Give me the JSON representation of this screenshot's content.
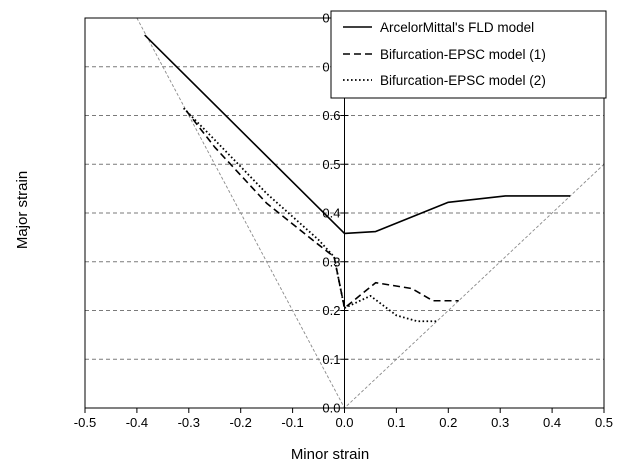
{
  "chart_data": {
    "type": "line",
    "title": "",
    "xlabel": "Minor strain",
    "ylabel": "Major strain",
    "xlim": [
      -0.5,
      0.5
    ],
    "ylim": [
      0.0,
      0.8
    ],
    "x_ticks": [
      "-0.5",
      "-0.4",
      "-0.3",
      "-0.2",
      "-0.1",
      "0.0",
      "0.1",
      "0.2",
      "0.3",
      "0.4",
      "0.5"
    ],
    "y_ticks": [
      "0.0",
      "0.1",
      "0.2",
      "0.3",
      "0.4",
      "0.5",
      "0.6",
      "0.7",
      "0.8"
    ],
    "grid": "horizontal dashed",
    "legend_position": "top-right",
    "series": [
      {
        "name": "ArcelorMittal's FLD model",
        "style": "solid",
        "points": [
          [
            -0.385,
            0.765
          ],
          [
            0.0,
            0.358
          ],
          [
            0.06,
            0.362
          ],
          [
            0.2,
            0.422
          ],
          [
            0.31,
            0.435
          ],
          [
            0.435,
            0.435
          ]
        ]
      },
      {
        "name": "Bifurcation-EPSC model (1)",
        "style": "dashed",
        "points": [
          [
            -0.305,
            0.61
          ],
          [
            -0.25,
            0.535
          ],
          [
            -0.15,
            0.42
          ],
          [
            -0.05,
            0.335
          ],
          [
            -0.02,
            0.31
          ],
          [
            0.0,
            0.205
          ],
          [
            0.06,
            0.257
          ],
          [
            0.13,
            0.245
          ],
          [
            0.17,
            0.22
          ],
          [
            0.22,
            0.22
          ]
        ]
      },
      {
        "name": "Bifurcation-EPSC model (2)",
        "style": "dotted",
        "points": [
          [
            -0.31,
            0.615
          ],
          [
            -0.25,
            0.55
          ],
          [
            -0.15,
            0.44
          ],
          [
            -0.05,
            0.345
          ],
          [
            -0.02,
            0.31
          ],
          [
            0.0,
            0.205
          ],
          [
            0.05,
            0.23
          ],
          [
            0.1,
            0.19
          ],
          [
            0.14,
            0.178
          ],
          [
            0.18,
            0.178
          ]
        ]
      }
    ],
    "guide_lines": [
      {
        "style": "thin-dashed",
        "color": "#8a8a8a",
        "points": [
          [
            -0.4,
            0.8
          ],
          [
            0.0,
            0.0
          ],
          [
            0.5,
            0.5
          ]
        ]
      }
    ]
  }
}
